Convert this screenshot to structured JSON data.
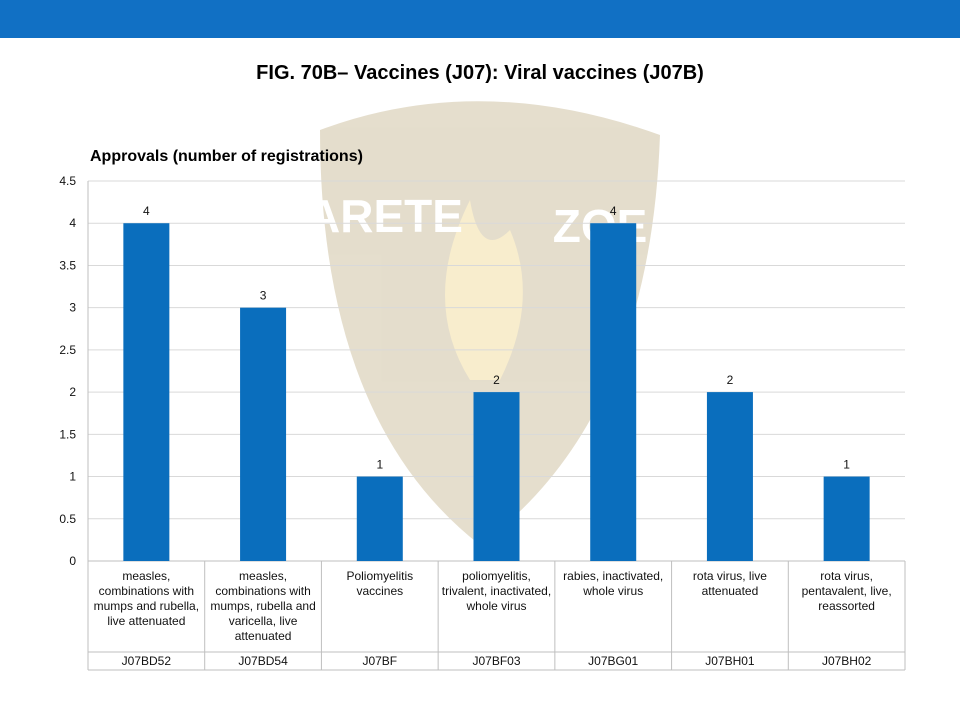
{
  "watermark": [
    "ARETE",
    "ZOE"
  ],
  "chart_data": {
    "type": "bar",
    "title": "FIG. 70B– Vaccines (J07): Viral vaccines (J07B)",
    "subtitle": "Approvals (number of registrations)",
    "categories": [
      "measles, combinations with mumps and rubella, live attenuated",
      "measles, combinations with mumps, rubella and varicella, live attenuated",
      "Poliomyelitis vaccines",
      "poliomyelitis, trivalent, inactivated, whole virus",
      "rabies, inactivated, whole virus",
      "rota virus, live attenuated",
      "rota virus, pentavalent, live, reassorted"
    ],
    "category_codes": [
      "J07BD52",
      "J07BD54",
      "J07BF",
      "J07BF03",
      "J07BG01",
      "J07BH01",
      "J07BH02"
    ],
    "values": [
      4,
      3,
      1,
      2,
      4,
      2,
      1
    ],
    "color": "#0a6ebd",
    "ylim": [
      0,
      4.5
    ],
    "yticks": [
      0,
      0.5,
      1,
      1.5,
      2,
      2.5,
      3,
      3.5,
      4,
      4.5
    ],
    "grid": true
  }
}
